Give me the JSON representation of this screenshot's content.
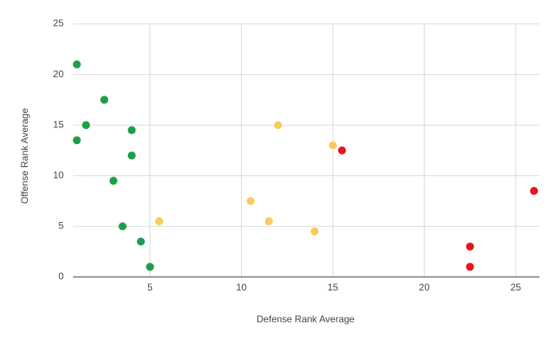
{
  "chart_data": {
    "type": "scatter",
    "xlabel": "Defense Rank Average",
    "ylabel": "Offense Rank Average",
    "xlim": [
      0.8,
      26.3
    ],
    "ylim": [
      0,
      25
    ],
    "xticks": [
      5,
      10,
      15,
      20,
      25
    ],
    "yticks": [
      0,
      5,
      10,
      15,
      20,
      25
    ],
    "grid": true,
    "series": [
      {
        "color": "#1e9e4a",
        "x": [
          1,
          2.5,
          1.5,
          4,
          1,
          4,
          3,
          3.5,
          4.5,
          5
        ],
        "values": [
          21,
          17.5,
          15,
          14.5,
          13.5,
          12,
          9.5,
          5,
          3.5,
          1
        ]
      },
      {
        "color": "#f7cc5a",
        "x": [
          5.5,
          12,
          15,
          10.5,
          11.5,
          14
        ],
        "values": [
          5.5,
          15,
          13,
          7.5,
          5.5,
          4.5
        ]
      },
      {
        "color": "#e8141b",
        "x": [
          15.5,
          26,
          22.5,
          22.5
        ],
        "values": [
          12.5,
          8.5,
          3,
          1
        ]
      }
    ]
  }
}
